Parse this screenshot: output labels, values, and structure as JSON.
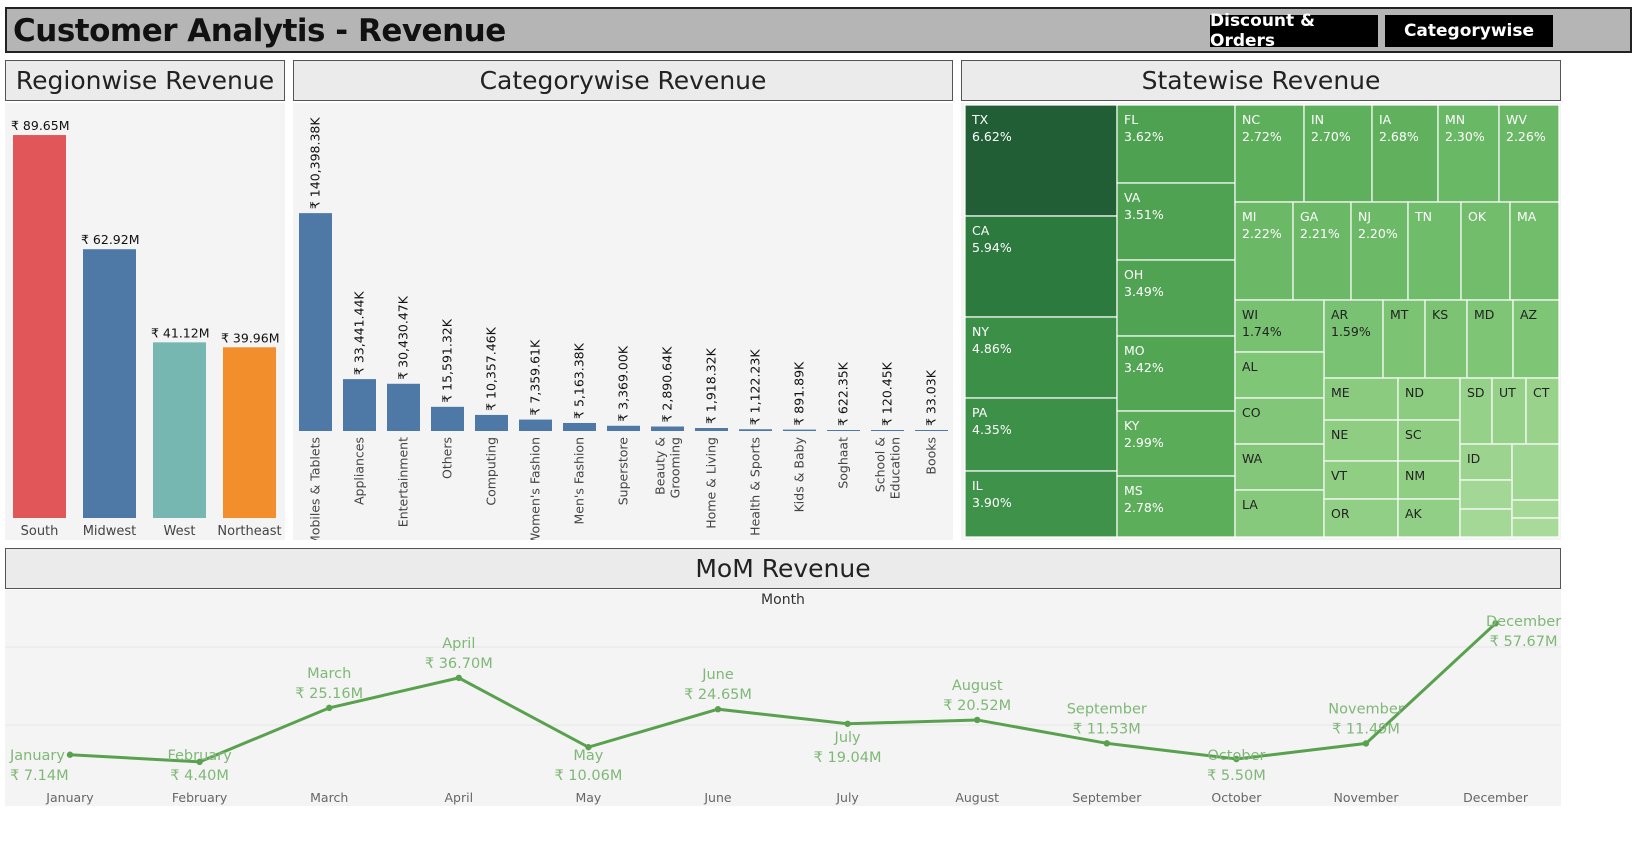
{
  "header": {
    "title": "Customer Analytis - Revenue",
    "buttons": [
      "Discount & Orders",
      "Categorywise"
    ]
  },
  "panels": {
    "region": "Regionwise Revenue",
    "category": "Categorywise Revenue",
    "state": "Statewise Revenue",
    "mom": "MoM Revenue"
  },
  "colors": {
    "bar_blue": "#4e79a7",
    "south": "#e15759",
    "midwest": "#4e79a7",
    "west": "#76b7b2",
    "northeast": "#f28e2b",
    "line_green": "#59a14f"
  },
  "chart_data": [
    {
      "type": "bar",
      "title": "Regionwise Revenue",
      "categories": [
        "South",
        "Midwest",
        "West",
        "Northeast"
      ],
      "values": [
        89.65,
        62.92,
        41.12,
        39.96
      ],
      "labels": [
        "₹ 89.65M",
        "₹ 62.92M",
        "₹ 41.12M",
        "₹ 39.96M"
      ],
      "ylim": [
        0,
        92
      ]
    },
    {
      "type": "bar",
      "title": "Categorywise Revenue",
      "categories": [
        "Mobiles & Tablets",
        "Appliances",
        "Entertainment",
        "Others",
        "Computing",
        "Women's Fashion",
        "Men's Fashion",
        "Superstore",
        "Beauty & Grooming",
        "Home & Living",
        "Health & Sports",
        "Kids & Baby",
        "Soghaat",
        "School & Education",
        "Books"
      ],
      "values": [
        140398.38,
        33441.44,
        30430.47,
        15591.32,
        10357.46,
        7359.61,
        5163.38,
        3369.0,
        2890.64,
        1918.32,
        1122.23,
        891.89,
        622.35,
        120.45,
        33.03
      ],
      "labels": [
        "₹ 140,398.38K",
        "₹ 33,441.44K",
        "₹ 30,430.47K",
        "₹ 15,591.32K",
        "₹ 10,357.46K",
        "₹ 7,359.61K",
        "₹ 5,163.38K",
        "₹ 3,369.00K",
        "₹ 2,890.64K",
        "₹ 1,918.32K",
        "₹ 1,122.23K",
        "₹ 891.89K",
        "₹ 622.35K",
        "₹ 120.45K",
        "₹ 33.03K"
      ],
      "ylim": [
        0,
        145000
      ]
    },
    {
      "type": "heatmap",
      "title": "Statewise Revenue",
      "states": [
        {
          "name": "TX",
          "pct": "6.62%"
        },
        {
          "name": "CA",
          "pct": "5.94%"
        },
        {
          "name": "NY",
          "pct": "4.86%"
        },
        {
          "name": "PA",
          "pct": "4.35%"
        },
        {
          "name": "IL",
          "pct": "3.90%"
        },
        {
          "name": "FL",
          "pct": "3.62%"
        },
        {
          "name": "VA",
          "pct": "3.51%"
        },
        {
          "name": "OH",
          "pct": "3.49%"
        },
        {
          "name": "MO",
          "pct": "3.42%"
        },
        {
          "name": "KY",
          "pct": "2.99%"
        },
        {
          "name": "MS",
          "pct": "2.78%"
        },
        {
          "name": "NC",
          "pct": "2.72%"
        },
        {
          "name": "IN",
          "pct": "2.70%"
        },
        {
          "name": "IA",
          "pct": "2.68%"
        },
        {
          "name": "MN",
          "pct": "2.30%"
        },
        {
          "name": "WV",
          "pct": "2.26%"
        },
        {
          "name": "MI",
          "pct": "2.22%"
        },
        {
          "name": "GA",
          "pct": "2.21%"
        },
        {
          "name": "NJ",
          "pct": "2.20%"
        },
        {
          "name": "TN",
          "pct": ""
        },
        {
          "name": "OK",
          "pct": ""
        },
        {
          "name": "MA",
          "pct": ""
        },
        {
          "name": "WI",
          "pct": "1.74%"
        },
        {
          "name": "AR",
          "pct": "1.59%"
        },
        {
          "name": "MT",
          "pct": ""
        },
        {
          "name": "KS",
          "pct": ""
        },
        {
          "name": "MD",
          "pct": ""
        },
        {
          "name": "AZ",
          "pct": ""
        },
        {
          "name": "AL",
          "pct": ""
        },
        {
          "name": "CO",
          "pct": ""
        },
        {
          "name": "WA",
          "pct": ""
        },
        {
          "name": "LA",
          "pct": ""
        },
        {
          "name": "ME",
          "pct": ""
        },
        {
          "name": "ND",
          "pct": ""
        },
        {
          "name": "NE",
          "pct": ""
        },
        {
          "name": "SC",
          "pct": ""
        },
        {
          "name": "VT",
          "pct": ""
        },
        {
          "name": "NM",
          "pct": ""
        },
        {
          "name": "OR",
          "pct": ""
        },
        {
          "name": "AK",
          "pct": ""
        },
        {
          "name": "SD",
          "pct": ""
        },
        {
          "name": "UT",
          "pct": ""
        },
        {
          "name": "CT",
          "pct": ""
        },
        {
          "name": "ID",
          "pct": ""
        },
        {
          "name": "",
          "pct": ""
        },
        {
          "name": "",
          "pct": ""
        },
        {
          "name": "",
          "pct": ""
        },
        {
          "name": "",
          "pct": ""
        },
        {
          "name": "",
          "pct": ""
        }
      ]
    },
    {
      "type": "line",
      "title": "MoM Revenue",
      "xlabel": "Month",
      "categories": [
        "January",
        "February",
        "March",
        "April",
        "May",
        "June",
        "July",
        "August",
        "September",
        "October",
        "November",
        "December"
      ],
      "values": [
        7.14,
        4.4,
        25.16,
        36.7,
        10.06,
        24.65,
        19.04,
        20.52,
        11.53,
        5.5,
        11.49,
        57.67
      ],
      "labels": [
        "₹ 7.14M",
        "₹ 4.40M",
        "₹ 25.16M",
        "₹ 36.70M",
        "₹ 10.06M",
        "₹ 24.65M",
        "₹ 19.04M",
        "₹ 20.52M",
        "₹ 11.53M",
        "₹ 5.50M",
        "₹ 11.49M",
        "₹ 57.67M"
      ]
    }
  ]
}
